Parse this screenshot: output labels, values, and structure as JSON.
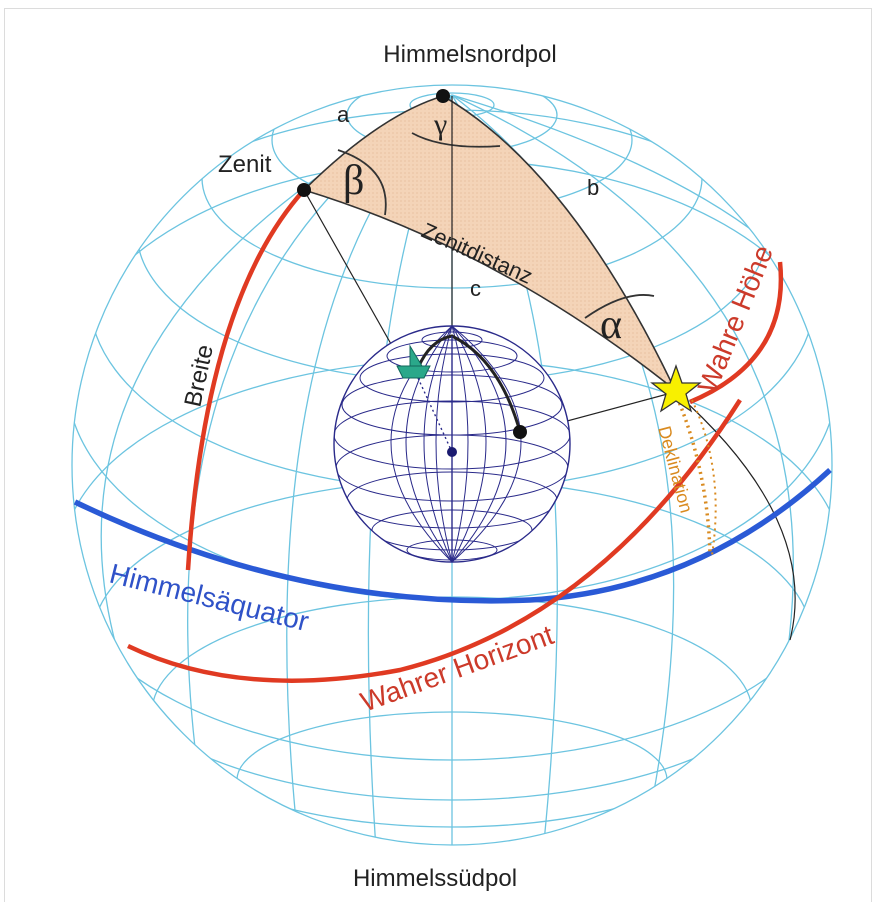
{
  "labels": {
    "north_pole": "Himmelsnordpol",
    "south_pole": "Himmelssüdpol",
    "zenith": "Zenit",
    "side_a": "a",
    "side_b": "b",
    "side_c": "c",
    "gamma": "γ",
    "beta": "β",
    "alpha": "α",
    "zenith_distance": "Zenitdistanz",
    "latitude": "Breite",
    "true_altitude": "Wahre Höhe",
    "declination": "Deklination",
    "celestial_equator": "Himmelsäquator",
    "true_horizon": "Wahrer Horizont"
  },
  "colors": {
    "grid": "#6cc4e0",
    "triangle_fill": "#f4d4b8",
    "red": "#e03a22",
    "blue": "#2a5ad6",
    "orange": "#d98a1f",
    "earth_grid": "#2a2a8a",
    "star": "#f8f000",
    "ship": "#2aa88a"
  }
}
